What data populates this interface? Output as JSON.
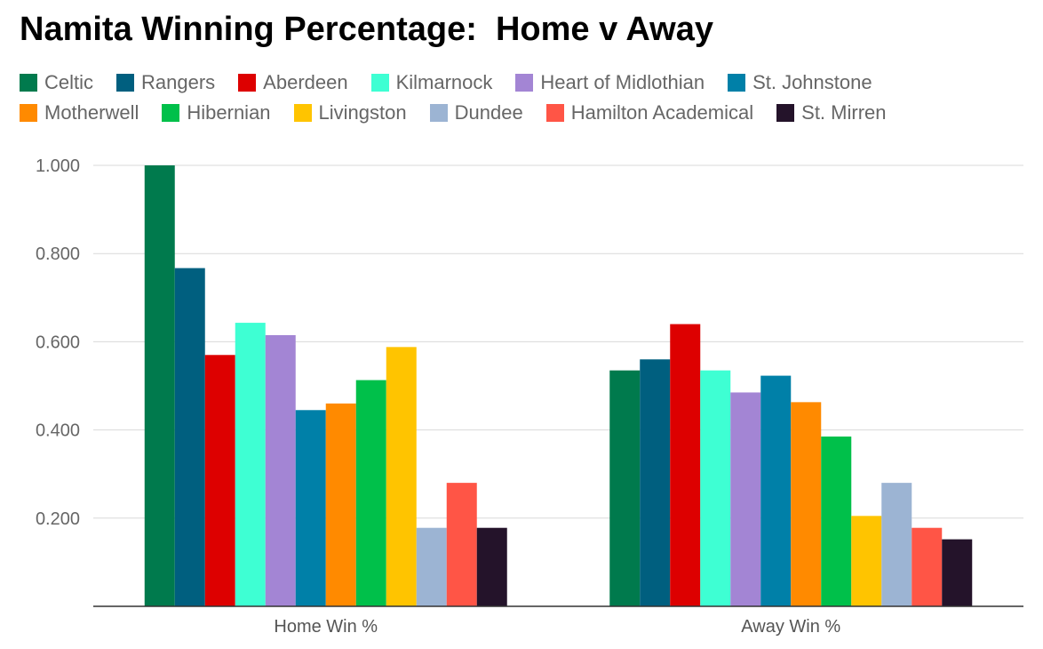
{
  "chart_data": {
    "type": "bar",
    "title": "Namita Winning Percentage:  Home v Away",
    "xlabel": "",
    "ylabel": "",
    "categories": [
      "Home Win %",
      "Away Win %"
    ],
    "ylim": [
      0,
      1.0
    ],
    "yticks": [
      "0.200",
      "0.400",
      "0.600",
      "0.800",
      "1.000"
    ],
    "legend_position": "top",
    "grid": true,
    "series": [
      {
        "name": "Celtic",
        "color": "#007a4d",
        "values": [
          1.0,
          0.535
        ]
      },
      {
        "name": "Rangers",
        "color": "#005f7f",
        "values": [
          0.767,
          0.56
        ]
      },
      {
        "name": "Aberdeen",
        "color": "#dd0000",
        "values": [
          0.57,
          0.64
        ]
      },
      {
        "name": "Kilmarnock",
        "color": "#3effd3",
        "values": [
          0.643,
          0.535
        ]
      },
      {
        "name": "Heart of Midlothian",
        "color": "#a385d4",
        "values": [
          0.615,
          0.485
        ]
      },
      {
        "name": "St. Johnstone",
        "color": "#0080a8",
        "values": [
          0.445,
          0.523
        ]
      },
      {
        "name": "Motherwell",
        "color": "#ff8a00",
        "values": [
          0.46,
          0.463
        ]
      },
      {
        "name": "Hibernian",
        "color": "#00c04a",
        "values": [
          0.513,
          0.385
        ]
      },
      {
        "name": "Livingston",
        "color": "#ffc400",
        "values": [
          0.588,
          0.205
        ]
      },
      {
        "name": "Dundee",
        "color": "#9cb4d3",
        "values": [
          0.178,
          0.28
        ]
      },
      {
        "name": "Hamilton Academical",
        "color": "#ff5546",
        "values": [
          0.28,
          0.178
        ]
      },
      {
        "name": "St. Mirren",
        "color": "#24132a",
        "values": [
          0.178,
          0.152
        ]
      }
    ]
  }
}
